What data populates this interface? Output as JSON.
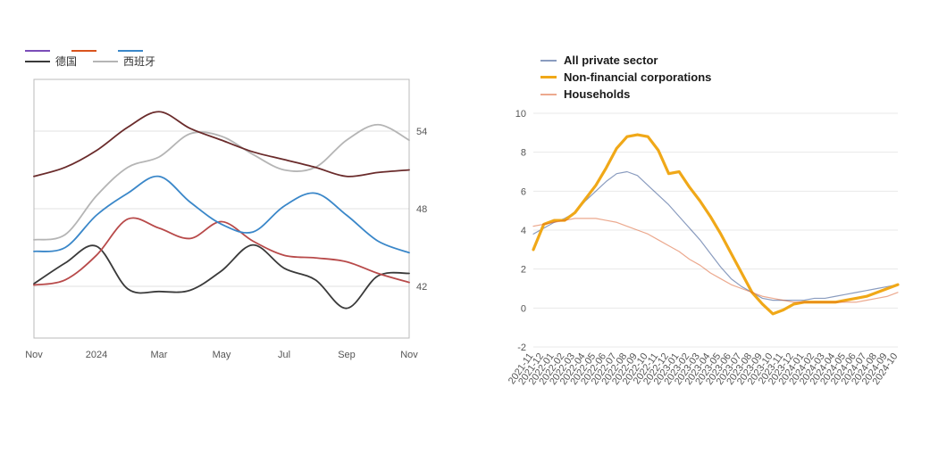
{
  "left_chart": {
    "type": "line",
    "ylim": [
      38,
      58
    ],
    "yticks": [
      42,
      48,
      54
    ],
    "x_labels": [
      "Nov",
      "2024",
      "Mar",
      "May",
      "Jul",
      "Sep",
      "Nov"
    ],
    "x_len": 13,
    "grid_color": "#e0e0e0",
    "border_color": "#c0c0c0",
    "line_width": 1.8,
    "series": [
      {
        "name": "legend1",
        "label": "",
        "color": "#7b4db8",
        "legend_only": true
      },
      {
        "name": "legend2",
        "label": "",
        "color": "#d9541e",
        "legend_only": true
      },
      {
        "name": "legend3",
        "label": "",
        "color": "#3a87c9",
        "legend_only": true
      },
      {
        "name": "germany",
        "label": "德国",
        "color": "#3a3a3a",
        "values": [
          42.2,
          43.8,
          45.1,
          41.8,
          41.6,
          41.7,
          43.2,
          45.2,
          43.4,
          42.5,
          40.3,
          42.8,
          43.0
        ]
      },
      {
        "name": "spain",
        "label": "西班牙",
        "color": "#b5b5b5",
        "values": [
          45.6,
          46.0,
          49.0,
          51.2,
          52.0,
          53.8,
          53.6,
          52.2,
          51.0,
          51.2,
          53.3,
          54.5,
          53.3
        ]
      },
      {
        "name": "series_darkred",
        "label": "",
        "hide_legend": true,
        "color": "#6a2b2b",
        "values": [
          50.5,
          51.2,
          52.5,
          54.3,
          55.5,
          54.2,
          53.3,
          52.4,
          51.8,
          51.2,
          50.5,
          50.8,
          51.0
        ]
      },
      {
        "name": "series_red",
        "label": "",
        "hide_legend": true,
        "color": "#b84a4a",
        "values": [
          42.1,
          42.5,
          44.4,
          47.2,
          46.5,
          45.7,
          47.0,
          45.5,
          44.4,
          44.2,
          43.9,
          43.0,
          42.3
        ]
      },
      {
        "name": "series_blue",
        "label": "",
        "hide_legend": true,
        "color": "#3a87c9",
        "values": [
          44.7,
          45.0,
          47.5,
          49.2,
          50.5,
          48.5,
          46.8,
          46.2,
          48.2,
          49.2,
          47.5,
          45.5,
          44.6
        ]
      }
    ]
  },
  "right_chart": {
    "type": "line",
    "ylim": [
      -2,
      10
    ],
    "yticks": [
      -2,
      0,
      2,
      4,
      6,
      8,
      10
    ],
    "x_labels": [
      "2021-11",
      "2021-12",
      "2022-01",
      "2022-02",
      "2022-03",
      "2022-04",
      "2022-05",
      "2022-06",
      "2022-07",
      "2022-08",
      "2022-09",
      "2022-10",
      "2022-11",
      "2022-12",
      "2023-01",
      "2023-02",
      "2023-03",
      "2023-04",
      "2023-05",
      "2023-06",
      "2023-07",
      "2023-08",
      "2023-09",
      "2023-10",
      "2023-11",
      "2023-12",
      "2024-01",
      "2024-02",
      "2024-03",
      "2024-04",
      "2024-05",
      "2024-06",
      "2024-07",
      "2024-08",
      "2024-09",
      "2024-10"
    ],
    "grid_color": "#e8e8e8",
    "series": [
      {
        "name": "all_private",
        "label": "All private sector",
        "color": "#2a4a8a",
        "width": 1.2,
        "opacity": 0.55,
        "values": [
          3.8,
          4.1,
          4.4,
          4.6,
          4.9,
          5.5,
          6.0,
          6.5,
          6.9,
          7.0,
          6.8,
          6.3,
          5.8,
          5.3,
          4.7,
          4.1,
          3.5,
          2.8,
          2.1,
          1.5,
          1.1,
          0.8,
          0.5,
          0.4,
          0.4,
          0.4,
          0.4,
          0.5,
          0.5,
          0.6,
          0.7,
          0.8,
          0.9,
          1.0,
          1.1,
          1.2
        ]
      },
      {
        "name": "non_financial_corps",
        "label": "Non-financial corporations",
        "color": "#f0a818",
        "width": 3.2,
        "opacity": 1.0,
        "values": [
          3.0,
          4.3,
          4.5,
          4.5,
          4.9,
          5.6,
          6.3,
          7.2,
          8.2,
          8.8,
          8.9,
          8.8,
          8.1,
          6.9,
          7.0,
          6.2,
          5.5,
          4.7,
          3.8,
          2.8,
          1.8,
          0.8,
          0.2,
          -0.3,
          -0.1,
          0.2,
          0.3,
          0.3,
          0.3,
          0.3,
          0.4,
          0.5,
          0.6,
          0.8,
          1.0,
          1.2
        ]
      },
      {
        "name": "households",
        "label": "Households",
        "color": "#d9541e",
        "width": 1.2,
        "opacity": 0.5,
        "values": [
          4.2,
          4.3,
          4.4,
          4.5,
          4.6,
          4.6,
          4.6,
          4.5,
          4.4,
          4.2,
          4.0,
          3.8,
          3.5,
          3.2,
          2.9,
          2.5,
          2.2,
          1.8,
          1.5,
          1.2,
          1.0,
          0.8,
          0.6,
          0.5,
          0.4,
          0.3,
          0.3,
          0.3,
          0.3,
          0.3,
          0.3,
          0.3,
          0.4,
          0.5,
          0.6,
          0.8
        ]
      }
    ]
  }
}
